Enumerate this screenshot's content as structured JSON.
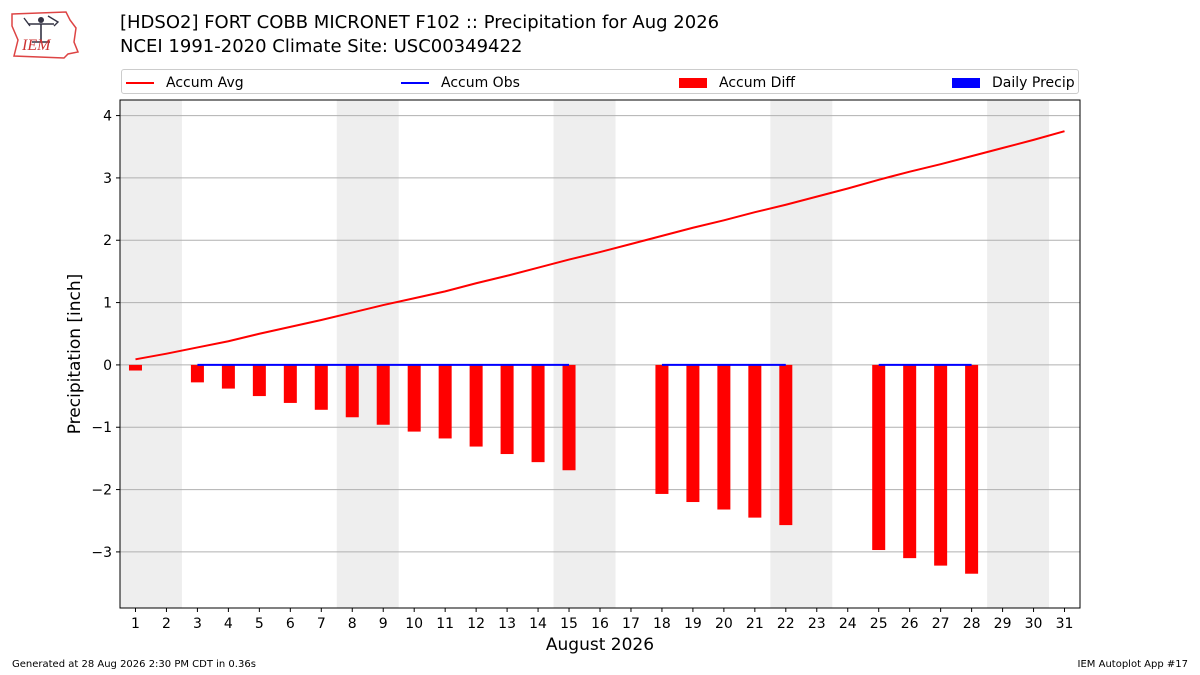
{
  "header": {
    "title_line1": "[HDSO2] FORT COBB MICRONET F102 :: Precipitation for Aug 2026",
    "title_line2": "NCEI 1991-2020 Climate Site: USC00349422",
    "logo_text": "IEM"
  },
  "legend": {
    "accum_avg": "Accum Avg",
    "accum_obs": "Accum Obs",
    "accum_diff": "Accum Diff",
    "daily_precip": "Daily Precip"
  },
  "footer": {
    "left": "Generated at 28 Aug 2026 2:30 PM CDT in 0.36s",
    "right": "IEM Autoplot App #17"
  },
  "colors": {
    "avg": "#ff0000",
    "obs": "#0000ff",
    "diff": "#ff0000",
    "daily": "#0000ff",
    "weekend_shade": "#eeeeee",
    "grid": "#b0b0b0"
  },
  "chart_data": {
    "type": "bar",
    "title": "[HDSO2] FORT COBB MICRONET F102 :: Precipitation for Aug 2026",
    "subtitle": "NCEI 1991-2020 Climate Site: USC00349422",
    "xlabel": "August 2026",
    "ylabel": "Precipitation [inch]",
    "xlim": [
      0.5,
      31.5
    ],
    "ylim": [
      -3.9,
      4.25
    ],
    "yticks": [
      -3,
      -2,
      -1,
      0,
      1,
      2,
      3,
      4
    ],
    "grid": "horizontal",
    "legend_position": "top",
    "days": [
      1,
      2,
      3,
      4,
      5,
      6,
      7,
      8,
      9,
      10,
      11,
      12,
      13,
      14,
      15,
      16,
      17,
      18,
      19,
      20,
      21,
      22,
      23,
      24,
      25,
      26,
      27,
      28,
      29,
      30,
      31
    ],
    "shaded_day_ranges": [
      [
        1,
        2
      ],
      [
        8,
        9
      ],
      [
        15,
        16
      ],
      [
        22,
        23
      ],
      [
        29,
        30
      ]
    ],
    "series": [
      {
        "name": "Accum Avg",
        "type": "line",
        "x": [
          1,
          2,
          3,
          4,
          5,
          6,
          7,
          8,
          9,
          10,
          11,
          12,
          13,
          14,
          15,
          16,
          17,
          18,
          19,
          20,
          21,
          22,
          23,
          24,
          25,
          26,
          27,
          28,
          29,
          30,
          31
        ],
        "values": [
          0.09,
          0.18,
          0.28,
          0.38,
          0.5,
          0.61,
          0.72,
          0.84,
          0.96,
          1.07,
          1.18,
          1.31,
          1.43,
          1.56,
          1.69,
          1.81,
          1.94,
          2.07,
          2.2,
          2.32,
          2.45,
          2.57,
          2.7,
          2.83,
          2.97,
          3.1,
          3.22,
          3.35,
          3.48,
          3.61,
          3.75
        ]
      },
      {
        "name": "Accum Obs",
        "type": "line",
        "x": [
          3,
          4,
          5,
          6,
          7,
          8,
          9,
          10,
          11,
          12,
          13,
          14,
          15,
          18,
          19,
          20,
          21,
          22,
          25,
          26,
          27,
          28
        ],
        "values": [
          0,
          0,
          0,
          0,
          0,
          0,
          0,
          0,
          0,
          0,
          0,
          0,
          0,
          0,
          0,
          0,
          0,
          0,
          0,
          0,
          0,
          0
        ]
      },
      {
        "name": "Accum Diff",
        "type": "bar",
        "x": [
          1,
          3,
          4,
          5,
          6,
          7,
          8,
          9,
          10,
          11,
          12,
          13,
          14,
          15,
          18,
          19,
          20,
          21,
          22,
          25,
          26,
          27,
          28
        ],
        "values": [
          -0.09,
          -0.28,
          -0.38,
          -0.5,
          -0.61,
          -0.72,
          -0.84,
          -0.96,
          -1.07,
          -1.18,
          -1.31,
          -1.43,
          -1.56,
          -1.69,
          -2.07,
          -2.2,
          -2.32,
          -2.45,
          -2.57,
          -2.97,
          -3.1,
          -3.22,
          -3.35
        ]
      },
      {
        "name": "Daily Precip",
        "type": "bar",
        "x": [],
        "values": []
      }
    ]
  }
}
